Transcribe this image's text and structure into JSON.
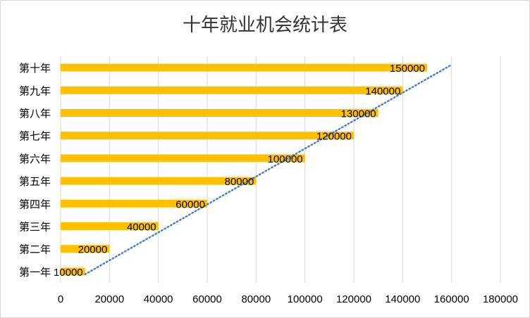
{
  "chart_data": {
    "type": "bar",
    "orientation": "horizontal",
    "title": "十年就业机会统计表",
    "categories": [
      "第一年",
      "第二年",
      "第三年",
      "第四年",
      "第五年",
      "第六年",
      "第七年",
      "第八年",
      "第九年",
      "第十年"
    ],
    "values": [
      10000,
      20000,
      40000,
      60000,
      80000,
      100000,
      120000,
      130000,
      140000,
      150000
    ],
    "data_labels": [
      "10000",
      "20000",
      "40000",
      "60000",
      "80000",
      "100000",
      "120000",
      "130000",
      "140000",
      "150000"
    ],
    "x_ticks": [
      "0",
      "20000",
      "40000",
      "60000",
      "80000",
      "100000",
      "120000",
      "140000",
      "160000",
      "180000"
    ],
    "xlim": [
      0,
      180000
    ],
    "grid": "vertical",
    "legend": "none",
    "trendline": {
      "type": "linear",
      "style": "dotted",
      "from": [
        10000,
        0
      ],
      "to": [
        160000,
        9
      ]
    },
    "colors": {
      "bar": "#FFC000",
      "trendline": "#4A7EBB",
      "grid": "#d9d9d9"
    }
  }
}
